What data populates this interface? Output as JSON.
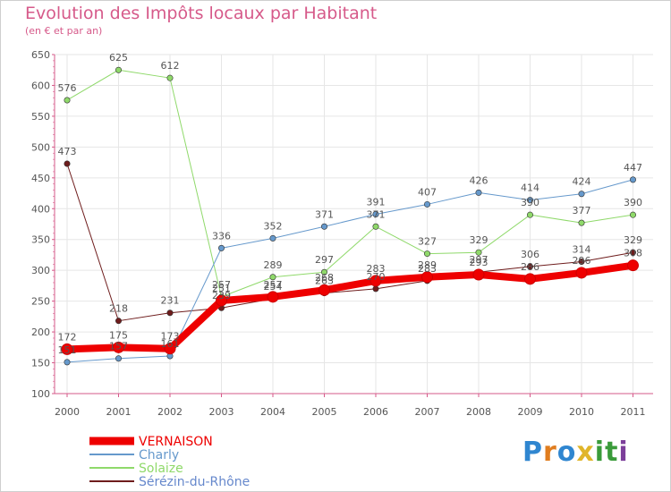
{
  "title": "Evolution des Impôts locaux par Habitant",
  "subtitle": "(en € et par an)",
  "logo": {
    "letters": [
      "P",
      "r",
      "o",
      "x",
      "i",
      "t",
      "i"
    ],
    "colors": [
      "#2f86d0",
      "#e07d1f",
      "#2f86d0",
      "#e0b52a",
      "#3a9b3a",
      "#3a9b3a",
      "#7c3f9a"
    ]
  },
  "chart_data": {
    "type": "line",
    "title": "Evolution des Impôts locaux par Habitant",
    "subtitle": "(en € et par an)",
    "xlabel": "",
    "ylabel": "",
    "ylim": [
      100,
      650
    ],
    "yticks": [
      100,
      150,
      200,
      250,
      300,
      350,
      400,
      450,
      500,
      550,
      600,
      650
    ],
    "categories": [
      "2000",
      "2001",
      "2002",
      "2003",
      "2004",
      "2005",
      "2006",
      "2007",
      "2008",
      "2009",
      "2010",
      "2011"
    ],
    "series": [
      {
        "name": "Sérézin-du-Rhône",
        "color": "#6e1c1c",
        "width": 1,
        "values": [
          473,
          218,
          231,
          239,
          254,
          263,
          270,
          283,
          297,
          306,
          314,
          329
        ],
        "labels": [
          "473",
          "218",
          "231",
          "239",
          "254",
          "263",
          "270",
          "283",
          "297",
          "306",
          "314",
          "329"
        ]
      },
      {
        "name": "Solaize",
        "color": "#8fd96a",
        "width": 1,
        "values": [
          576,
          625,
          612,
          257,
          289,
          297,
          371,
          327,
          329,
          390,
          377,
          390
        ],
        "labels": [
          "576",
          "625",
          "612",
          "257",
          "289",
          "297",
          "371",
          "327",
          "329",
          "390",
          "377",
          "390"
        ]
      },
      {
        "name": "Charly",
        "color": "#6699cc",
        "width": 1,
        "values": [
          151,
          157,
          161,
          336,
          352,
          371,
          391,
          407,
          426,
          414,
          424,
          447
        ],
        "labels": [
          "151",
          "157",
          "161",
          "336",
          "352",
          "371",
          "391",
          "407",
          "426",
          "414",
          "424",
          "447"
        ]
      },
      {
        "name": "VERNAISON",
        "color": "#ee0000",
        "width": 8,
        "values": [
          172,
          175,
          173,
          251,
          257,
          268,
          283,
          289,
          293,
          286,
          296,
          308
        ],
        "labels": [
          "172",
          "175",
          "173",
          "251",
          "257",
          "268",
          "283",
          "289",
          "293",
          "286",
          "296",
          "308"
        ]
      }
    ],
    "legend": {
      "position": "bottom-left",
      "entries": [
        {
          "name": "VERNAISON",
          "color": "#ee0000",
          "text_color": "#ee0000",
          "thick": true
        },
        {
          "name": "Charly",
          "color": "#6699cc",
          "text_color": "#6699cc",
          "thick": false
        },
        {
          "name": "Solaize",
          "color": "#8fd96a",
          "text_color": "#8fd96a",
          "thick": false
        },
        {
          "name": "Sérézin-du-Rhône",
          "color": "#6e1c1c",
          "text_color": "#6688cc",
          "thick": false
        }
      ]
    }
  }
}
